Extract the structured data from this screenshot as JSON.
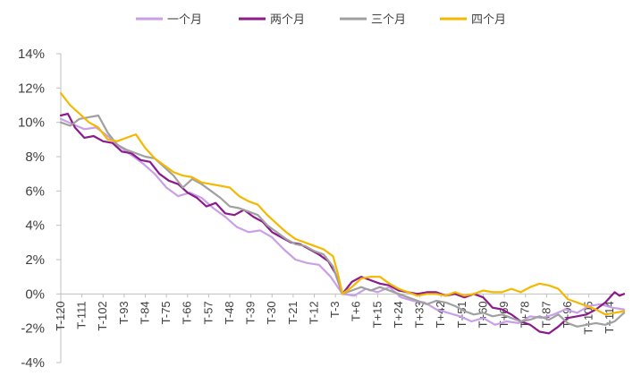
{
  "chart_data": {
    "type": "line",
    "title": "",
    "xlabel": "",
    "ylabel": "",
    "ylim": [
      -4,
      14
    ],
    "ytick_labels": [
      "14%",
      "12%",
      "10%",
      "8%",
      "6%",
      "4%",
      "2%",
      "0%",
      "-2%",
      "-4%"
    ],
    "yticks": [
      14,
      12,
      10,
      8,
      6,
      4,
      2,
      0,
      -2,
      -4
    ],
    "xlim": [
      -120,
      120
    ],
    "xtick_labels": [
      "T-120",
      "T-111",
      "T-102",
      "T-93",
      "T-84",
      "T-75",
      "T-66",
      "T-57",
      "T-48",
      "T-39",
      "T-30",
      "T-21",
      "T-12",
      "T-3",
      "T+6",
      "T+15",
      "T+24",
      "T+33",
      "T+42",
      "T+51",
      "T+60",
      "T+69",
      "T+78",
      "T+87",
      "T+96",
      "T+105",
      "T+114"
    ],
    "xticks": [
      -120,
      -111,
      -102,
      -93,
      -84,
      -75,
      -66,
      -57,
      -48,
      -39,
      -30,
      -21,
      -12,
      -3,
      6,
      15,
      24,
      33,
      42,
      51,
      60,
      69,
      78,
      87,
      96,
      105,
      114
    ],
    "grid": false,
    "legend_position": "top",
    "series": [
      {
        "name": "一个月",
        "color": "#c9a0e8",
        "points": [
          [
            -120,
            10.2
          ],
          [
            -115,
            9.9
          ],
          [
            -110,
            9.6
          ],
          [
            -105,
            9.7
          ],
          [
            -100,
            9.2
          ],
          [
            -95,
            8.6
          ],
          [
            -90,
            8.1
          ],
          [
            -85,
            7.6
          ],
          [
            -80,
            7.0
          ],
          [
            -75,
            6.2
          ],
          [
            -70,
            5.7
          ],
          [
            -65,
            5.9
          ],
          [
            -60,
            5.6
          ],
          [
            -55,
            5.0
          ],
          [
            -50,
            4.5
          ],
          [
            -45,
            3.9
          ],
          [
            -40,
            3.6
          ],
          [
            -35,
            3.7
          ],
          [
            -30,
            3.3
          ],
          [
            -25,
            2.6
          ],
          [
            -20,
            2.0
          ],
          [
            -15,
            1.8
          ],
          [
            -10,
            1.7
          ],
          [
            -5,
            1.0
          ],
          [
            0,
            0.0
          ],
          [
            5,
            -0.1
          ],
          [
            10,
            0.3
          ],
          [
            15,
            0.1
          ],
          [
            20,
            0.4
          ],
          [
            25,
            -0.2
          ],
          [
            30,
            -0.4
          ],
          [
            35,
            -0.5
          ],
          [
            40,
            -0.9
          ],
          [
            45,
            -1.1
          ],
          [
            50,
            -1.3
          ],
          [
            55,
            -1.6
          ],
          [
            60,
            -1.4
          ],
          [
            65,
            -1.8
          ],
          [
            70,
            -1.6
          ],
          [
            75,
            -1.7
          ],
          [
            80,
            -1.3
          ],
          [
            85,
            -1.4
          ],
          [
            90,
            -1.2
          ],
          [
            95,
            -0.9
          ],
          [
            100,
            -1.1
          ],
          [
            105,
            -0.7
          ],
          [
            110,
            -0.6
          ],
          [
            115,
            -0.8
          ],
          [
            120,
            -0.9
          ]
        ]
      },
      {
        "name": "两个月",
        "color": "#8b1a8b",
        "points": [
          [
            -120,
            10.4
          ],
          [
            -117,
            10.5
          ],
          [
            -114,
            9.7
          ],
          [
            -110,
            9.1
          ],
          [
            -106,
            9.2
          ],
          [
            -102,
            8.9
          ],
          [
            -98,
            8.8
          ],
          [
            -94,
            8.3
          ],
          [
            -90,
            8.2
          ],
          [
            -86,
            7.8
          ],
          [
            -82,
            7.7
          ],
          [
            -78,
            7.0
          ],
          [
            -74,
            6.6
          ],
          [
            -70,
            6.4
          ],
          [
            -66,
            5.9
          ],
          [
            -62,
            5.6
          ],
          [
            -58,
            5.1
          ],
          [
            -54,
            5.3
          ],
          [
            -50,
            4.7
          ],
          [
            -46,
            4.6
          ],
          [
            -42,
            4.9
          ],
          [
            -38,
            4.5
          ],
          [
            -34,
            4.2
          ],
          [
            -30,
            3.6
          ],
          [
            -26,
            3.3
          ],
          [
            -22,
            3.0
          ],
          [
            -18,
            2.9
          ],
          [
            -14,
            2.6
          ],
          [
            -10,
            2.3
          ],
          [
            -6,
            1.9
          ],
          [
            -3,
            1.2
          ],
          [
            0,
            0.0
          ],
          [
            4,
            0.7
          ],
          [
            8,
            1.0
          ],
          [
            12,
            0.8
          ],
          [
            16,
            0.6
          ],
          [
            20,
            0.5
          ],
          [
            24,
            0.2
          ],
          [
            28,
            0.1
          ],
          [
            32,
            0.0
          ],
          [
            36,
            0.1
          ],
          [
            40,
            0.1
          ],
          [
            44,
            -0.1
          ],
          [
            48,
            0.0
          ],
          [
            52,
            -0.2
          ],
          [
            56,
            0.0
          ],
          [
            60,
            -0.2
          ],
          [
            64,
            -0.8
          ],
          [
            68,
            -0.9
          ],
          [
            72,
            -1.2
          ],
          [
            76,
            -1.6
          ],
          [
            80,
            -1.8
          ],
          [
            84,
            -2.2
          ],
          [
            88,
            -2.3
          ],
          [
            92,
            -1.9
          ],
          [
            96,
            -1.4
          ],
          [
            100,
            -1.3
          ],
          [
            104,
            -1.2
          ],
          [
            108,
            -0.9
          ],
          [
            112,
            -0.5
          ],
          [
            116,
            0.1
          ],
          [
            118,
            -0.1
          ],
          [
            120,
            0.0
          ]
        ]
      },
      {
        "name": "三个月",
        "color": "#a0a0a0",
        "points": [
          [
            -120,
            10.0
          ],
          [
            -116,
            9.8
          ],
          [
            -112,
            10.2
          ],
          [
            -108,
            10.3
          ],
          [
            -104,
            10.4
          ],
          [
            -100,
            9.4
          ],
          [
            -96,
            8.7
          ],
          [
            -92,
            8.4
          ],
          [
            -88,
            8.2
          ],
          [
            -84,
            8.0
          ],
          [
            -80,
            7.9
          ],
          [
            -76,
            7.4
          ],
          [
            -72,
            6.9
          ],
          [
            -68,
            6.2
          ],
          [
            -64,
            6.7
          ],
          [
            -60,
            6.4
          ],
          [
            -56,
            6.0
          ],
          [
            -52,
            5.6
          ],
          [
            -48,
            5.1
          ],
          [
            -44,
            5.0
          ],
          [
            -40,
            4.8
          ],
          [
            -36,
            4.6
          ],
          [
            -32,
            4.0
          ],
          [
            -28,
            3.6
          ],
          [
            -24,
            3.2
          ],
          [
            -20,
            2.9
          ],
          [
            -16,
            2.8
          ],
          [
            -12,
            2.5
          ],
          [
            -8,
            2.3
          ],
          [
            -4,
            1.6
          ],
          [
            0,
            0.0
          ],
          [
            4,
            0.2
          ],
          [
            8,
            0.4
          ],
          [
            12,
            0.2
          ],
          [
            16,
            0.4
          ],
          [
            20,
            0.2
          ],
          [
            24,
            0.0
          ],
          [
            28,
            -0.2
          ],
          [
            32,
            -0.4
          ],
          [
            36,
            -0.6
          ],
          [
            40,
            -0.4
          ],
          [
            44,
            -0.5
          ],
          [
            48,
            -0.7
          ],
          [
            52,
            -1.0
          ],
          [
            56,
            -1.2
          ],
          [
            60,
            -1.1
          ],
          [
            64,
            -1.3
          ],
          [
            68,
            -1.2
          ],
          [
            72,
            -1.4
          ],
          [
            76,
            -1.6
          ],
          [
            80,
            -1.5
          ],
          [
            84,
            -1.3
          ],
          [
            88,
            -1.5
          ],
          [
            92,
            -1.2
          ],
          [
            96,
            -1.7
          ],
          [
            100,
            -1.9
          ],
          [
            104,
            -1.8
          ],
          [
            108,
            -1.7
          ],
          [
            112,
            -1.8
          ],
          [
            116,
            -1.6
          ],
          [
            120,
            -1.1
          ]
        ]
      },
      {
        "name": "四个月",
        "color": "#f5b800",
        "points": [
          [
            -120,
            11.7
          ],
          [
            -116,
            11.0
          ],
          [
            -112,
            10.5
          ],
          [
            -108,
            10.0
          ],
          [
            -104,
            9.7
          ],
          [
            -100,
            9.0
          ],
          [
            -96,
            8.9
          ],
          [
            -92,
            9.1
          ],
          [
            -88,
            9.3
          ],
          [
            -84,
            8.5
          ],
          [
            -80,
            7.9
          ],
          [
            -76,
            7.5
          ],
          [
            -72,
            7.1
          ],
          [
            -68,
            6.9
          ],
          [
            -64,
            6.8
          ],
          [
            -60,
            6.5
          ],
          [
            -56,
            6.4
          ],
          [
            -52,
            6.3
          ],
          [
            -48,
            6.2
          ],
          [
            -44,
            5.7
          ],
          [
            -40,
            5.4
          ],
          [
            -36,
            5.2
          ],
          [
            -32,
            4.6
          ],
          [
            -28,
            4.1
          ],
          [
            -24,
            3.6
          ],
          [
            -20,
            3.2
          ],
          [
            -16,
            3.0
          ],
          [
            -12,
            2.8
          ],
          [
            -8,
            2.6
          ],
          [
            -4,
            2.2
          ],
          [
            -2,
            1.2
          ],
          [
            0,
            0.0
          ],
          [
            4,
            0.4
          ],
          [
            8,
            0.9
          ],
          [
            12,
            1.0
          ],
          [
            16,
            1.0
          ],
          [
            20,
            0.6
          ],
          [
            24,
            0.3
          ],
          [
            28,
            0.1
          ],
          [
            32,
            -0.1
          ],
          [
            36,
            0.0
          ],
          [
            40,
            0.0
          ],
          [
            44,
            -0.1
          ],
          [
            48,
            0.1
          ],
          [
            52,
            -0.1
          ],
          [
            56,
            0.0
          ],
          [
            60,
            0.2
          ],
          [
            64,
            0.1
          ],
          [
            68,
            0.1
          ],
          [
            72,
            0.3
          ],
          [
            76,
            0.1
          ],
          [
            80,
            0.4
          ],
          [
            84,
            0.6
          ],
          [
            88,
            0.5
          ],
          [
            92,
            0.3
          ],
          [
            96,
            -0.3
          ],
          [
            100,
            -0.5
          ],
          [
            104,
            -0.7
          ],
          [
            108,
            -0.9
          ],
          [
            112,
            -1.2
          ],
          [
            116,
            -1.1
          ],
          [
            120,
            -1.0
          ]
        ]
      }
    ]
  }
}
